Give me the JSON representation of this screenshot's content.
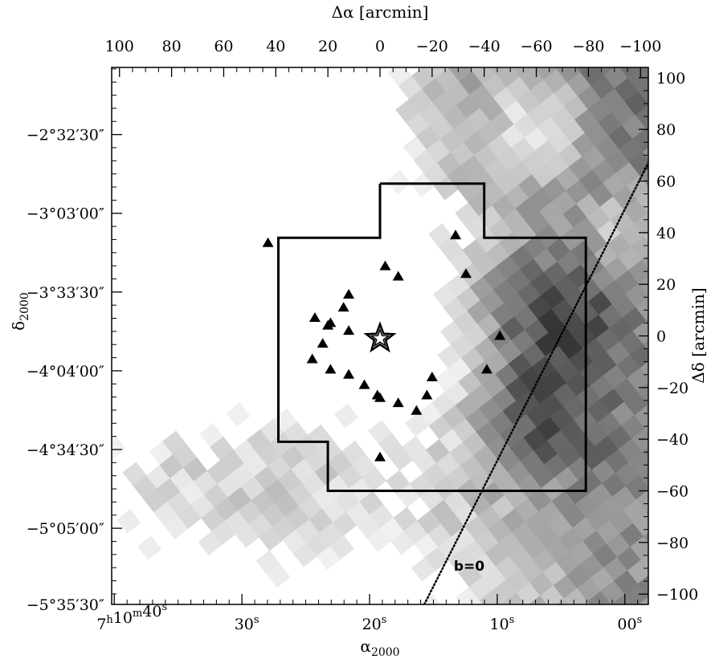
{
  "chart_data": {
    "type": "scatter",
    "title": "",
    "top_axis": {
      "label": "Δα [arcmin]",
      "ticks": [
        {
          "v": 100,
          "label": "100"
        },
        {
          "v": 80,
          "label": "80"
        },
        {
          "v": 60,
          "label": "60"
        },
        {
          "v": 40,
          "label": "40"
        },
        {
          "v": 20,
          "label": "20"
        },
        {
          "v": 0,
          "label": "0"
        },
        {
          "v": -20,
          "label": "−20"
        },
        {
          "v": -40,
          "label": "−40"
        },
        {
          "v": -60,
          "label": "−60"
        },
        {
          "v": -80,
          "label": "−80"
        },
        {
          "v": -100,
          "label": "−100"
        }
      ],
      "range": [
        103,
        -103
      ]
    },
    "right_axis": {
      "label": "Δδ [arcmin]",
      "ticks": [
        {
          "v": 100,
          "label": "100"
        },
        {
          "v": 80,
          "label": "80"
        },
        {
          "v": 60,
          "label": "60"
        },
        {
          "v": 40,
          "label": "40"
        },
        {
          "v": 20,
          "label": "20"
        },
        {
          "v": 0,
          "label": "0"
        },
        {
          "v": -20,
          "label": "−20"
        },
        {
          "v": -40,
          "label": "−40"
        },
        {
          "v": -60,
          "label": "−60"
        },
        {
          "v": -80,
          "label": "−80"
        },
        {
          "v": -100,
          "label": "−100"
        }
      ],
      "range": [
        -104,
        104
      ]
    },
    "bottom_axis": {
      "label_main": "α",
      "label_sub": "2000",
      "ticks": [
        {
          "label": "7h10m40s",
          "v": 102
        },
        {
          "label": "30s",
          "v": 53
        },
        {
          "label": "20s",
          "v": 4
        },
        {
          "label": "10s",
          "v": -45
        },
        {
          "label": "00s",
          "v": -94
        }
      ]
    },
    "left_axis": {
      "label_main": "δ",
      "label_sub": "2000",
      "ticks": [
        {
          "label": "−2°32′30″",
          "v": 78
        },
        {
          "label": "−3°03′00″",
          "v": 47.5
        },
        {
          "label": "−3°33′30″",
          "v": 17
        },
        {
          "label": "−4°04′00″",
          "v": -13.5
        },
        {
          "label": "−4°34′30″",
          "v": -44
        },
        {
          "label": "−5°05′00″",
          "v": -74.5
        },
        {
          "label": "−5°35′30″",
          "v": -104
        }
      ]
    },
    "field_outline_arcmin": [
      [
        0,
        59
      ],
      [
        -40,
        59
      ],
      [
        -40,
        38
      ],
      [
        -79,
        38
      ],
      [
        -79,
        -60
      ],
      [
        20,
        -60
      ],
      [
        20,
        -41
      ],
      [
        39,
        -41
      ],
      [
        39,
        38
      ],
      [
        0,
        38
      ],
      [
        0,
        59
      ]
    ],
    "star": {
      "x": 0,
      "y": -1
    },
    "triangles": [
      [
        43,
        36
      ],
      [
        -29,
        39
      ],
      [
        -33,
        24
      ],
      [
        -2,
        27
      ],
      [
        -7,
        23
      ],
      [
        12,
        16
      ],
      [
        14,
        11
      ],
      [
        25,
        7
      ],
      [
        19,
        5
      ],
      [
        20,
        4
      ],
      [
        12,
        2
      ],
      [
        -46,
        0
      ],
      [
        22,
        -3
      ],
      [
        26,
        -9
      ],
      [
        19,
        -13
      ],
      [
        12,
        -15
      ],
      [
        6,
        -19
      ],
      [
        -41,
        -13
      ],
      [
        -20,
        -16
      ],
      [
        1,
        -23
      ],
      [
        0,
        -24
      ],
      [
        -7,
        -26
      ],
      [
        -14,
        -29
      ],
      [
        -18,
        -23
      ],
      [
        0,
        -47
      ]
    ],
    "galactic_plane": {
      "label": "b=0",
      "line": [
        [
          -17,
          -104
        ],
        [
          -103,
          67
        ]
      ]
    },
    "background": "greyscale extinction map (darker = higher), dark band toward lower-right along b=0"
  }
}
